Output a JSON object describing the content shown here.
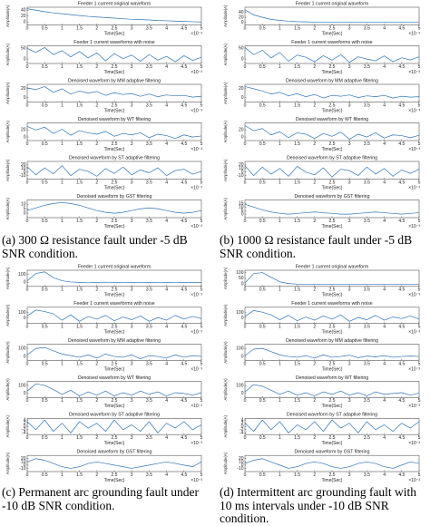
{
  "axes": {
    "xlabel": "Time(Sec)",
    "ylabel": "Amplitude(A)",
    "x_exponent": "×10⁻³",
    "xlim": [
      0,
      5
    ],
    "xticks": [
      0,
      0.5,
      1,
      1.5,
      2,
      2.5,
      3,
      3.5,
      4,
      4.5,
      5
    ],
    "line_color": "#2e75b6",
    "time": [
      0,
      0.25,
      0.5,
      0.75,
      1,
      1.25,
      1.5,
      1.75,
      2,
      2.25,
      2.5,
      2.75,
      3,
      3.25,
      3.5,
      3.75,
      4,
      4.25,
      4.5,
      4.75,
      5
    ]
  },
  "panels": [
    {
      "caption": "(a) 300 Ω resistance fault under -5 dB SNR condition.",
      "subplots": [
        {
          "title": "Feeder 1 current original waveform",
          "ylim": [
            -10,
            50
          ],
          "yticks": [
            0,
            20,
            40
          ],
          "values": [
            45,
            40,
            35,
            31,
            28,
            25,
            22,
            19,
            17,
            15,
            13,
            11,
            9,
            8,
            7,
            5,
            4,
            3,
            2,
            1,
            0
          ]
        },
        {
          "title": "Feeder 1 current waveforms with noise",
          "ylim": [
            -20,
            60
          ],
          "yticks": [
            0,
            50
          ],
          "values": [
            48,
            30,
            52,
            20,
            38,
            10,
            34,
            5,
            28,
            -8,
            25,
            2,
            18,
            -10,
            20,
            -5,
            12,
            -12,
            15,
            -6,
            8
          ]
        },
        {
          "title": "Denoised waveform by MM adaptive filtering",
          "ylim": [
            -10,
            30
          ],
          "yticks": [
            0,
            20
          ],
          "values": [
            22,
            18,
            25,
            12,
            20,
            8,
            15,
            10,
            14,
            5,
            11,
            7,
            9,
            3,
            8,
            2,
            6,
            4,
            5,
            1,
            3
          ]
        },
        {
          "title": "Denoised waveform by WT filtering",
          "ylim": [
            -10,
            40
          ],
          "yticks": [
            0,
            20
          ],
          "values": [
            30,
            20,
            28,
            10,
            22,
            5,
            18,
            12,
            8,
            16,
            2,
            10,
            6,
            12,
            -2,
            8,
            4,
            -4,
            6,
            0,
            3
          ]
        },
        {
          "title": "Denoised waveform by ST adaptive filtering",
          "ylim": [
            -20,
            30
          ],
          "yticks": [
            -10,
            0,
            10,
            20
          ],
          "values": [
            15,
            -8,
            12,
            -5,
            18,
            -10,
            8,
            2,
            -12,
            10,
            -4,
            14,
            -8,
            6,
            -2,
            12,
            -10,
            4,
            8,
            -6,
            2
          ]
        },
        {
          "title": "Denoised waveform by GST filtering",
          "ylim": [
            -5,
            15
          ],
          "yticks": [
            0,
            5,
            10
          ],
          "values": [
            3,
            6,
            9,
            11,
            12,
            11,
            9,
            6,
            3,
            1,
            0,
            1,
            3,
            5,
            6,
            5,
            3,
            1,
            0,
            1,
            3
          ]
        }
      ]
    },
    {
      "caption": "(b) 1000 Ω resistance fault under -5 dB SNR condition.",
      "subplots": [
        {
          "title": "Feeder 1 current original waveform",
          "ylim": [
            -10,
            60
          ],
          "yticks": [
            0,
            20,
            40
          ],
          "values": [
            50,
            30,
            20,
            12,
            8,
            5,
            3,
            2,
            1,
            1,
            0,
            0,
            0,
            0,
            0,
            0,
            0,
            0,
            0,
            0,
            0
          ]
        },
        {
          "title": "Feeder 1 current waveforms with noise",
          "ylim": [
            -20,
            60
          ],
          "yticks": [
            0,
            50
          ],
          "values": [
            52,
            20,
            40,
            5,
            30,
            -10,
            18,
            8,
            -12,
            15,
            -5,
            20,
            -15,
            10,
            0,
            -8,
            14,
            -12,
            6,
            -4,
            10
          ]
        },
        {
          "title": "Denoised waveform by MM adaptive filtering",
          "ylim": [
            -10,
            30
          ],
          "yticks": [
            0,
            20
          ],
          "values": [
            25,
            20,
            15,
            8,
            12,
            4,
            9,
            2,
            7,
            -1,
            5,
            3,
            6,
            0,
            4,
            2,
            5,
            -1,
            3,
            1,
            2
          ]
        },
        {
          "title": "Denoised waveform by WT filtering",
          "ylim": [
            -10,
            40
          ],
          "yticks": [
            0,
            20
          ],
          "values": [
            32,
            18,
            24,
            6,
            15,
            -2,
            12,
            8,
            -4,
            10,
            2,
            14,
            -6,
            8,
            0,
            12,
            -3,
            6,
            4,
            -2,
            5
          ]
        },
        {
          "title": "Denoised waveform by ST adaptive filtering",
          "ylim": [
            -20,
            30
          ],
          "yticks": [
            -10,
            0,
            10,
            20
          ],
          "values": [
            18,
            -10,
            14,
            -6,
            10,
            -12,
            16,
            0,
            -8,
            12,
            -14,
            8,
            4,
            -10,
            14,
            -6,
            10,
            -12,
            6,
            -4,
            8
          ]
        },
        {
          "title": "Denoised waveform by GST filtering",
          "ylim": [
            -5,
            20
          ],
          "yticks": [
            0,
            5,
            10,
            15
          ],
          "values": [
            14,
            10,
            6,
            3,
            1,
            0,
            1,
            2,
            3,
            2,
            1,
            0,
            0,
            1,
            2,
            3,
            2,
            1,
            0,
            1,
            2
          ]
        }
      ]
    },
    {
      "caption": "(c) Permanent arc grounding fault under -10 dB SNR condition.",
      "subplots": [
        {
          "title": "Feeder 1 current original waveform",
          "ylim": [
            -50,
            150
          ],
          "yticks": [
            0,
            100
          ],
          "values": [
            20,
            110,
            130,
            60,
            20,
            5,
            0,
            -5,
            0,
            2,
            0,
            -2,
            0,
            1,
            0,
            -1,
            0,
            1,
            0,
            0,
            0
          ]
        },
        {
          "title": "Feeder 1 current waveforms with noise",
          "ylim": [
            -100,
            200
          ],
          "yticks": [
            0,
            100
          ],
          "values": [
            40,
            150,
            120,
            80,
            -40,
            60,
            -60,
            30,
            -20,
            50,
            -50,
            20,
            -30,
            40,
            -60,
            10,
            -40,
            50,
            -20,
            30,
            -10
          ]
        },
        {
          "title": "Denoised waveform by MM adaptive filtering",
          "ylim": [
            -50,
            150
          ],
          "yticks": [
            0,
            100
          ],
          "values": [
            20,
            100,
            110,
            70,
            30,
            10,
            -10,
            20,
            -20,
            30,
            0,
            -10,
            20,
            -30,
            10,
            0,
            -20,
            20,
            -10,
            10,
            0
          ]
        },
        {
          "title": "Denoised waveform by WT filtering",
          "ylim": [
            -50,
            150
          ],
          "yticks": [
            0,
            100
          ],
          "values": [
            30,
            120,
            100,
            50,
            -10,
            40,
            -30,
            20,
            -20,
            30,
            -30,
            10,
            -20,
            30,
            -10,
            20,
            -30,
            10,
            0,
            -20,
            10
          ]
        },
        {
          "title": "Denoised waveform by ST adaptive filtering",
          "ylim": [
            -5,
            5
          ],
          "yticks": [
            -4,
            -2,
            0,
            2,
            4
          ],
          "values": [
            3,
            -2,
            4,
            -3,
            2,
            -4,
            3,
            -1,
            2,
            -3,
            4,
            -2,
            1,
            -3,
            3,
            -4,
            2,
            -1,
            3,
            -2,
            1
          ]
        },
        {
          "title": "Denoised waveform by GST filtering",
          "ylim": [
            -20,
            30
          ],
          "yticks": [
            -10,
            0,
            10,
            20
          ],
          "values": [
            10,
            20,
            15,
            5,
            -5,
            -10,
            -5,
            5,
            10,
            5,
            0,
            -5,
            -10,
            -5,
            0,
            5,
            10,
            5,
            0,
            -5,
            10
          ]
        }
      ]
    },
    {
      "caption": "(d) Intermittent arc grounding fault with 10 ms intervals under -10 dB SNR condition.",
      "subplots": [
        {
          "title": "Feeder 1 current original waveform",
          "ylim": [
            -20,
            120
          ],
          "yticks": [
            0,
            50,
            100
          ],
          "values": [
            10,
            90,
            100,
            60,
            20,
            5,
            0,
            0,
            0,
            0,
            0,
            0,
            0,
            0,
            0,
            0,
            0,
            0,
            0,
            0,
            0
          ]
        },
        {
          "title": "Feeder 1 current waveforms with noise",
          "ylim": [
            -100,
            200
          ],
          "yticks": [
            0,
            100
          ],
          "values": [
            30,
            140,
            110,
            60,
            -30,
            50,
            -50,
            20,
            -40,
            40,
            -20,
            60,
            -60,
            10,
            -30,
            50,
            -40,
            20,
            -10,
            40,
            -20
          ]
        },
        {
          "title": "Denoised waveform by MM adaptive filtering",
          "ylim": [
            -50,
            150
          ],
          "yticks": [
            0,
            100
          ],
          "values": [
            10,
            90,
            100,
            60,
            20,
            0,
            -10,
            10,
            -20,
            20,
            -10,
            0,
            15,
            -15,
            5,
            -5,
            10,
            -10,
            0,
            5,
            0
          ]
        },
        {
          "title": "Denoised waveform by WT filtering",
          "ylim": [
            -50,
            150
          ],
          "yticks": [
            0,
            100
          ],
          "values": [
            20,
            110,
            90,
            40,
            -10,
            30,
            -20,
            10,
            -30,
            20,
            -10,
            30,
            -20,
            10,
            -30,
            20,
            -10,
            0,
            10,
            -20,
            5
          ]
        },
        {
          "title": "Denoised waveform by ST adaptive filtering",
          "ylim": [
            -5,
            5
          ],
          "yticks": [
            -4,
            -2,
            0,
            2,
            4
          ],
          "values": [
            2,
            -3,
            4,
            -2,
            3,
            -4,
            1,
            -2,
            3,
            -3,
            4,
            -1,
            2,
            -4,
            3,
            -2,
            1,
            -3,
            2,
            -1,
            3
          ]
        },
        {
          "title": "Denoised waveform by GST filtering",
          "ylim": [
            -20,
            30
          ],
          "yticks": [
            -10,
            0,
            10,
            20
          ],
          "values": [
            5,
            15,
            20,
            10,
            0,
            -10,
            -5,
            5,
            10,
            5,
            -5,
            -10,
            -5,
            5,
            10,
            5,
            -5,
            -10,
            0,
            10,
            5
          ]
        }
      ]
    }
  ]
}
